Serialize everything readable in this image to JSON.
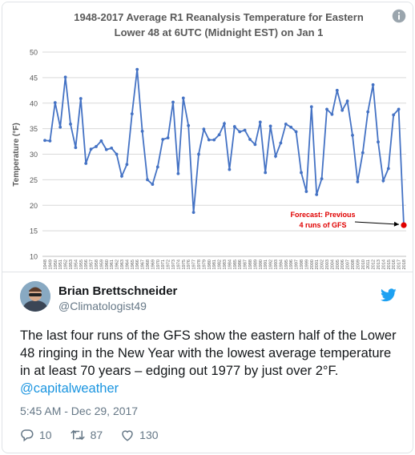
{
  "chart_data": {
    "type": "line",
    "title": "1948-2017 Average R1 Reanalysis  Temperature for Eastern Lower 48 at 6UTC (Midnight EST) on Jan 1",
    "title_lines": [
      "1948-2017 Average R1 Reanalysis  Temperature for Eastern",
      "Lower 48 at 6UTC (Midnight EST) on Jan 1"
    ],
    "ylabel": "Temperature (°F)",
    "xlabel": "",
    "ylim": [
      10,
      50
    ],
    "yticks": [
      10,
      15,
      20,
      25,
      30,
      35,
      40,
      45,
      50
    ],
    "grid": true,
    "x": [
      1948,
      1949,
      1950,
      1951,
      1952,
      1953,
      1954,
      1955,
      1956,
      1957,
      1958,
      1959,
      1960,
      1961,
      1962,
      1963,
      1964,
      1965,
      1966,
      1967,
      1968,
      1969,
      1970,
      1971,
      1972,
      1973,
      1974,
      1975,
      1976,
      1977,
      1978,
      1979,
      1980,
      1981,
      1982,
      1983,
      1984,
      1985,
      1986,
      1987,
      1988,
      1989,
      1990,
      1991,
      1992,
      1993,
      1994,
      1995,
      1996,
      1997,
      1998,
      1999,
      2000,
      2001,
      2002,
      2003,
      2004,
      2005,
      2006,
      2007,
      2008,
      2009,
      2010,
      2011,
      2012,
      2013,
      2014,
      2015,
      2016,
      2017,
      2018
    ],
    "series": [
      {
        "color": "#4472c4",
        "values": [
          32.7,
          32.6,
          40.1,
          35.3,
          45.1,
          35.9,
          31.3,
          40.9,
          28.2,
          31.0,
          31.5,
          32.6,
          30.9,
          31.2,
          30.0,
          25.7,
          28.0,
          37.9,
          46.6,
          34.5,
          25.0,
          24.1,
          27.5,
          32.9,
          33.2,
          40.2,
          26.2,
          41.0,
          35.6,
          18.6,
          30.0,
          34.9,
          32.8,
          32.8,
          33.8,
          36.0,
          27.0,
          35.4,
          34.4,
          34.7,
          32.9,
          31.9,
          36.3,
          26.4,
          35.5,
          29.6,
          32.2,
          35.9,
          35.3,
          34.4,
          26.4,
          22.7,
          39.3,
          22.1,
          25.2,
          38.8,
          37.8,
          42.5,
          38.6,
          40.4,
          33.7,
          24.6,
          30.3,
          38.3,
          43.6,
          32.4,
          24.8,
          27.2,
          37.7,
          38.8,
          16.1
        ]
      }
    ],
    "forecast_point": {
      "x": 2018,
      "y": 16.1,
      "color": "#e00000"
    },
    "annotation": {
      "lines": [
        "Forecast: Previous",
        "4 runs of GFS"
      ],
      "color": "#e00000"
    }
  },
  "tweet": {
    "author_name": "Brian Brettschneider",
    "author_handle": "@Climatologist49",
    "text": "The last four runs of the GFS show the eastern half of the Lower 48 ringing in the New Year with the lowest average temperature in at least 70 years – edging out 1977 by just over 2°F.",
    "mention": "@capitalweather",
    "timestamp": "5:45 AM - Dec 29, 2017",
    "replies": "10",
    "retweets": "87",
    "likes": "130"
  },
  "colors": {
    "twitter_blue": "#1da1f2",
    "line": "#4472c4",
    "forecast": "#e00000"
  },
  "icons": [
    "twitter-bird-icon",
    "reply-icon",
    "retweet-icon",
    "like-icon"
  ]
}
